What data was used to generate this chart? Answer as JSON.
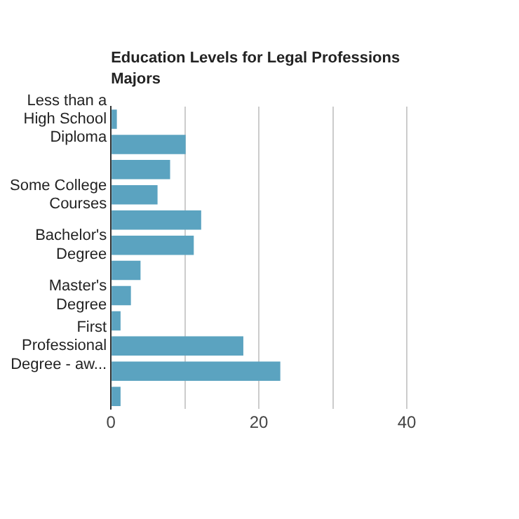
{
  "chart_data": {
    "type": "bar",
    "orientation": "horizontal",
    "title": "Education Levels for Legal Professions Majors",
    "categories": [
      "Less than a High School Diploma",
      null,
      null,
      "Some College Courses",
      null,
      "Bachelor's Degree",
      null,
      "Master's Degree",
      null,
      "First Professional Degree - aw...",
      null,
      null
    ],
    "values": [
      0.8,
      10.1,
      8.0,
      6.3,
      12.2,
      11.2,
      4.0,
      2.7,
      1.3,
      17.9,
      22.9,
      1.3
    ],
    "color": "#5ba3c0",
    "xlim": [
      0,
      40
    ],
    "xticks": [
      0,
      {
        "value": 10,
        "label": null
      },
      20,
      {
        "value": 30,
        "label": null
      },
      40
    ],
    "grid": "x",
    "legend": false
  }
}
